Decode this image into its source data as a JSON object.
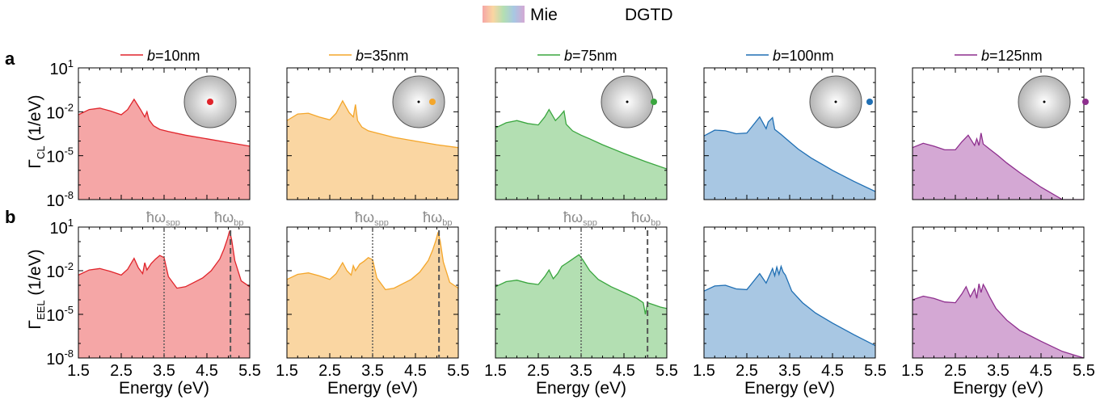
{
  "legend": {
    "mie_label": "Mie",
    "dgtd_label": "DGTD"
  },
  "row_labels": {
    "a": "a",
    "b": "b"
  },
  "ylabels": {
    "cl_main": "Γ",
    "cl_sub": "CL",
    "eel_main": "Γ",
    "eel_sub": "EEL",
    "unit": " (1/eV)"
  },
  "xlabel": "Energy (eV)",
  "annotations": {
    "spp_main": "ħω",
    "spp_sub": "spp",
    "bp_main": "ħω",
    "bp_sub": "bp"
  },
  "panel_titles": [
    {
      "b": "b",
      "rest": "=10nm"
    },
    {
      "b": "b",
      "rest": "=35nm"
    },
    {
      "b": "b",
      "rest": "=75nm"
    },
    {
      "b": "b",
      "rest": "=100nm"
    },
    {
      "b": "b",
      "rest": "=125nm"
    }
  ],
  "colors": {
    "series": [
      "#e0242b",
      "#f4a62a",
      "#3aa63f",
      "#1f6fb4",
      "#8e2f8e"
    ],
    "fills": [
      "#f5a6a6",
      "#fad6a2",
      "#b3dfb2",
      "#a8c7e3",
      "#d4a8d4"
    ],
    "gray": "#8a8a8a"
  },
  "chart_data": {
    "type": "area",
    "y_scale": "log",
    "xlim": [
      1.5,
      5.5
    ],
    "ylim": [
      1e-08,
      10
    ],
    "xticks": [
      "1.5",
      "2.5",
      "3.5",
      "4.5",
      "5.5"
    ],
    "yticks": [
      {
        "base": "10",
        "exp": "1"
      },
      {
        "base": "10",
        "exp": "-2"
      },
      {
        "base": "10",
        "exp": "-5"
      },
      {
        "base": "10",
        "exp": "-8"
      }
    ],
    "hbar_omega_spp_eV": 3.5,
    "hbar_omega_bp_eV": 5.05,
    "panels": [
      {
        "b_nm": 10,
        "cl": {
          "x": [
            1.5,
            1.75,
            2.0,
            2.25,
            2.5,
            2.65,
            2.8,
            2.95,
            3.05,
            3.1,
            3.15,
            3.25,
            3.4,
            3.6,
            4.0,
            4.5,
            5.0,
            5.5
          ],
          "log_y": [
            -2.2,
            -1.85,
            -1.75,
            -1.95,
            -2.2,
            -1.85,
            -1.15,
            -1.85,
            -2.35,
            -2.0,
            -2.55,
            -2.95,
            -3.2,
            -3.35,
            -3.6,
            -3.85,
            -4.1,
            -4.35
          ]
        },
        "eel": {
          "x": [
            1.5,
            1.75,
            2.0,
            2.25,
            2.5,
            2.65,
            2.8,
            2.9,
            3.0,
            3.05,
            3.1,
            3.2,
            3.3,
            3.4,
            3.5,
            3.6,
            3.8,
            4.0,
            4.2,
            4.4,
            4.6,
            4.8,
            4.9,
            4.98,
            5.03,
            5.08,
            5.15,
            5.3,
            5.5
          ],
          "log_y": [
            -2.3,
            -1.95,
            -1.85,
            -2.05,
            -2.3,
            -1.9,
            -1.15,
            -1.8,
            -2.2,
            -1.45,
            -1.95,
            -1.5,
            -1.2,
            -0.95,
            -1.1,
            -2.4,
            -3.2,
            -3.1,
            -2.8,
            -2.5,
            -2.0,
            -1.2,
            -0.5,
            0.2,
            0.75,
            0.1,
            -1.3,
            -2.7,
            -3.1
          ]
        }
      },
      {
        "b_nm": 35,
        "cl": {
          "x": [
            1.5,
            1.75,
            2.0,
            2.25,
            2.5,
            2.65,
            2.8,
            2.95,
            3.05,
            3.1,
            3.15,
            3.25,
            3.4,
            3.6,
            4.0,
            4.5,
            5.0,
            5.5
          ],
          "log_y": [
            -2.6,
            -2.15,
            -2.1,
            -2.35,
            -2.55,
            -2.1,
            -1.25,
            -2.05,
            -2.35,
            -1.5,
            -2.6,
            -3.05,
            -3.3,
            -3.45,
            -3.75,
            -4.0,
            -4.25,
            -4.45
          ]
        },
        "eel": {
          "x": [
            1.5,
            1.75,
            2.0,
            2.25,
            2.5,
            2.65,
            2.8,
            2.9,
            3.0,
            3.05,
            3.1,
            3.2,
            3.3,
            3.4,
            3.5,
            3.6,
            3.8,
            4.0,
            4.2,
            4.4,
            4.6,
            4.8,
            4.9,
            4.98,
            5.03,
            5.08,
            5.15,
            5.3,
            5.5
          ],
          "log_y": [
            -2.6,
            -2.25,
            -2.15,
            -2.35,
            -2.6,
            -2.2,
            -1.45,
            -2.0,
            -2.3,
            -1.65,
            -2.0,
            -1.55,
            -1.35,
            -1.1,
            -1.25,
            -2.5,
            -3.3,
            -3.2,
            -2.9,
            -2.6,
            -2.1,
            -1.3,
            -0.6,
            0.1,
            0.65,
            0.0,
            -1.4,
            -2.8,
            -3.2
          ]
        }
      },
      {
        "b_nm": 75,
        "cl": {
          "x": [
            1.5,
            1.75,
            2.0,
            2.25,
            2.5,
            2.65,
            2.75,
            2.9,
            3.0,
            3.1,
            3.15,
            3.3,
            3.5,
            3.7,
            4.0,
            4.5,
            5.0,
            5.5
          ],
          "log_y": [
            -3.1,
            -2.75,
            -2.6,
            -2.8,
            -2.9,
            -2.35,
            -1.85,
            -2.6,
            -2.3,
            -1.95,
            -2.85,
            -3.3,
            -3.6,
            -3.85,
            -4.25,
            -4.85,
            -5.4,
            -5.9
          ]
        },
        "eel": {
          "x": [
            1.5,
            1.75,
            2.0,
            2.25,
            2.5,
            2.65,
            2.75,
            2.85,
            2.95,
            3.05,
            3.15,
            3.25,
            3.35,
            3.45,
            3.55,
            3.7,
            3.9,
            4.2,
            4.5,
            4.8,
            4.95,
            5.0,
            5.05,
            5.2,
            5.35,
            5.5
          ],
          "log_y": [
            -3.1,
            -2.75,
            -2.65,
            -2.85,
            -2.95,
            -2.4,
            -1.95,
            -2.55,
            -2.2,
            -1.7,
            -1.5,
            -1.3,
            -1.1,
            -0.9,
            -1.3,
            -2.0,
            -2.6,
            -3.1,
            -3.5,
            -3.9,
            -4.2,
            -5.0,
            -4.2,
            -4.35,
            -4.5,
            -4.6
          ]
        }
      },
      {
        "b_nm": 100,
        "cl": {
          "x": [
            1.5,
            1.75,
            2.0,
            2.25,
            2.5,
            2.65,
            2.8,
            2.95,
            3.0,
            3.1,
            3.15,
            3.3,
            3.5,
            3.7,
            4.0,
            4.5,
            5.0,
            5.5
          ],
          "log_y": [
            -3.65,
            -3.25,
            -3.3,
            -3.5,
            -3.45,
            -2.9,
            -2.35,
            -3.15,
            -2.7,
            -2.4,
            -3.2,
            -3.55,
            -4.05,
            -4.55,
            -5.15,
            -6.0,
            -6.75,
            -7.45
          ]
        },
        "eel": {
          "x": [
            1.5,
            1.75,
            2.0,
            2.25,
            2.5,
            2.65,
            2.8,
            2.95,
            3.05,
            3.1,
            3.15,
            3.2,
            3.25,
            3.3,
            3.35,
            3.4,
            3.55,
            3.8,
            4.1,
            4.5,
            5.0,
            5.5
          ],
          "log_y": [
            -3.4,
            -3.05,
            -3.0,
            -3.25,
            -3.3,
            -2.75,
            -2.2,
            -2.85,
            -2.2,
            -1.85,
            -2.35,
            -1.75,
            -2.25,
            -1.7,
            -2.1,
            -2.3,
            -3.4,
            -4.2,
            -4.9,
            -5.6,
            -6.4,
            -7.15
          ]
        }
      },
      {
        "b_nm": 125,
        "cl": {
          "x": [
            1.5,
            1.75,
            2.0,
            2.25,
            2.5,
            2.65,
            2.8,
            2.95,
            3.0,
            3.05,
            3.1,
            3.15,
            3.3,
            3.5,
            3.7,
            4.0,
            4.5,
            5.0,
            5.5
          ],
          "log_y": [
            -4.45,
            -4.15,
            -4.35,
            -4.6,
            -4.6,
            -4.05,
            -3.6,
            -4.3,
            -3.85,
            -4.3,
            -3.45,
            -4.2,
            -4.55,
            -5.0,
            -5.5,
            -6.15,
            -7.15,
            -8.1,
            -8.9
          ]
        },
        "eel": {
          "x": [
            1.5,
            1.75,
            2.0,
            2.25,
            2.5,
            2.65,
            2.75,
            2.85,
            2.95,
            3.0,
            3.05,
            3.1,
            3.15,
            3.2,
            3.3,
            3.45,
            3.7,
            4.0,
            4.5,
            5.0,
            5.5
          ],
          "log_y": [
            -4.0,
            -3.75,
            -3.9,
            -4.15,
            -4.2,
            -3.6,
            -3.1,
            -3.8,
            -3.25,
            -3.9,
            -2.9,
            -3.5,
            -2.95,
            -3.2,
            -3.8,
            -4.6,
            -5.4,
            -6.1,
            -6.85,
            -7.55,
            -8.25
          ]
        }
      }
    ]
  }
}
